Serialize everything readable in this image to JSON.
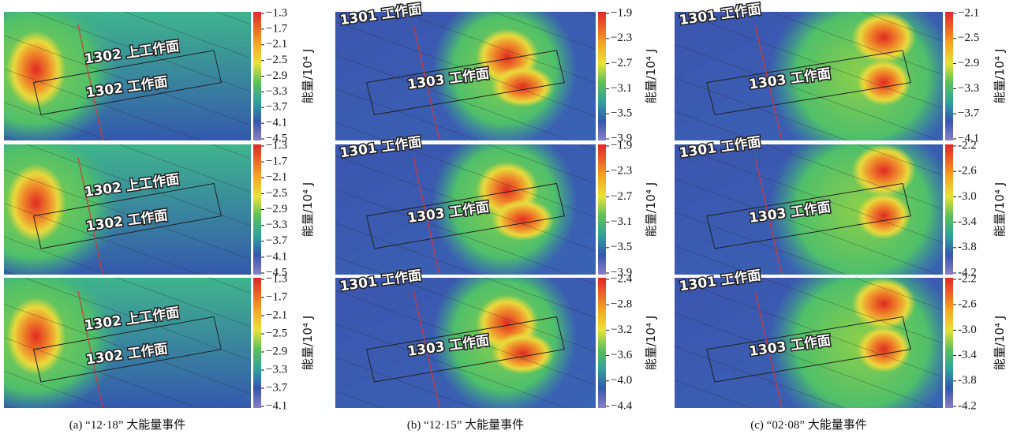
{
  "columns": [
    {
      "caption": "(a) “12·18” 大能量事件",
      "panels": [
        {
          "labels": [
            "1302 上工作面",
            "1302 工作面"
          ],
          "colorbar": {
            "title": "能量/10⁴ J",
            "ticks": [
              "−1.3",
              "−1.7",
              "−2.1",
              "−2.5",
              "−2.9",
              "−3.3",
              "−3.7",
              "−4.1",
              "−4.5"
            ]
          }
        },
        {
          "labels": [
            "1302 上工作面",
            "1302 工作面"
          ],
          "colorbar": {
            "title": "能量/10⁴ J",
            "ticks": [
              "−1.3",
              "−1.7",
              "−2.1",
              "−2.5",
              "−2.9",
              "−3.3",
              "−3.7",
              "−4.1",
              "−4.5"
            ]
          }
        },
        {
          "labels": [
            "1302 上工作面",
            "1302 工作面"
          ],
          "colorbar": {
            "title": "能量/10⁴ J",
            "ticks": [
              "−1.3",
              "−1.7",
              "−2.1",
              "−2.5",
              "−2.9",
              "−3.3",
              "−3.7",
              "−4.1"
            ]
          }
        }
      ]
    },
    {
      "caption": "(b) “12·15” 大能量事件",
      "panels": [
        {
          "labels": [
            "1301 工作面",
            "1303 工作面"
          ],
          "colorbar": {
            "title": "能量/10⁴ J",
            "ticks": [
              "−1.9",
              "−2.3",
              "−2.7",
              "−3.1",
              "−3.5",
              "−3.9"
            ]
          }
        },
        {
          "labels": [
            "1301 工作面",
            "1303 工作面"
          ],
          "colorbar": {
            "title": "能量/10⁴ J",
            "ticks": [
              "−1.9",
              "−2.3",
              "−2.7",
              "−3.1",
              "−3.5",
              "−3.9"
            ]
          }
        },
        {
          "labels": [
            "1301 工作面",
            "1303 工作面"
          ],
          "colorbar": {
            "title": "能量/10⁴ J",
            "ticks": [
              "−2.4",
              "−2.8",
              "−3.2",
              "−3.6",
              "−4.0",
              "−4.4"
            ]
          }
        }
      ]
    },
    {
      "caption": "(c) “02·08” 大能量事件",
      "panels": [
        {
          "labels": [
            "1301 工作面",
            "1303 工作面"
          ],
          "colorbar": {
            "title": "能量/10⁴ J",
            "ticks": [
              "−2.1",
              "−2.5",
              "−2.9",
              "−3.3",
              "−3.7",
              "−4.1"
            ]
          }
        },
        {
          "labels": [
            "1301 工作面",
            "1303 工作面"
          ],
          "colorbar": {
            "title": "能量/10⁴ J",
            "ticks": [
              "-2.2",
              "-2.6",
              "-3.0",
              "-3.4",
              "-3.8",
              "-4.2"
            ]
          }
        },
        {
          "labels": [
            "1301 工作面",
            "1303 工作面"
          ],
          "colorbar": {
            "title": "能量/10⁴ J",
            "ticks": [
              "-2.2",
              "-2.6",
              "-3.0",
              "-3.4",
              "-3.8",
              "-4.2"
            ]
          }
        }
      ]
    }
  ]
}
